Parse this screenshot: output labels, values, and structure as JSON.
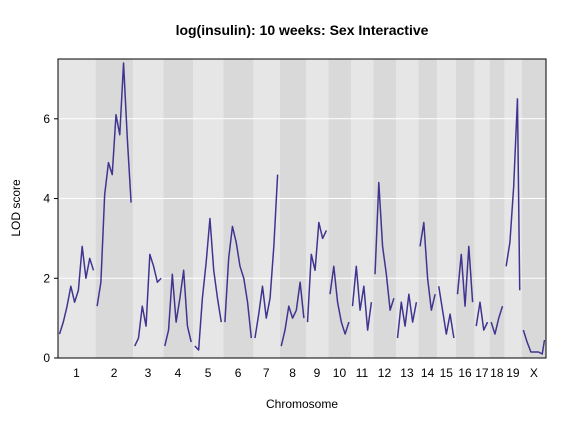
{
  "chart_data": {
    "type": "line",
    "title": "log(insulin): 10 weeks: Sex Interactive",
    "xlabel": "Chromosome",
    "ylabel": "LOD score",
    "ylim": [
      0,
      7.5
    ],
    "y_ticks": [
      0,
      2,
      4,
      6
    ],
    "grid": true,
    "line_color": "#3f3590",
    "band_colors": [
      "#e6e6e6",
      "#d9d9d9"
    ],
    "chromosomes": [
      {
        "label": "1",
        "points": [
          [
            0,
            0.6
          ],
          [
            5,
            0.9
          ],
          [
            10,
            1.3
          ],
          [
            15,
            1.8
          ],
          [
            20,
            1.4
          ],
          [
            25,
            1.7
          ],
          [
            30,
            2.8
          ],
          [
            35,
            2.0
          ],
          [
            40,
            2.5
          ],
          [
            45,
            2.2
          ]
        ]
      },
      {
        "label": "2",
        "points": [
          [
            0,
            1.3
          ],
          [
            5,
            1.9
          ],
          [
            10,
            4.1
          ],
          [
            15,
            4.9
          ],
          [
            20,
            4.6
          ],
          [
            25,
            6.1
          ],
          [
            30,
            5.6
          ],
          [
            35,
            7.4
          ],
          [
            40,
            5.5
          ],
          [
            45,
            3.9
          ]
        ]
      },
      {
        "label": "3",
        "points": [
          [
            0,
            0.3
          ],
          [
            5,
            0.5
          ],
          [
            10,
            1.3
          ],
          [
            15,
            0.8
          ],
          [
            20,
            2.6
          ],
          [
            25,
            2.3
          ],
          [
            30,
            1.9
          ],
          [
            35,
            2.0
          ]
        ]
      },
      {
        "label": "4",
        "points": [
          [
            0,
            0.3
          ],
          [
            5,
            0.7
          ],
          [
            10,
            2.1
          ],
          [
            15,
            0.9
          ],
          [
            20,
            1.5
          ],
          [
            25,
            2.2
          ],
          [
            30,
            0.8
          ],
          [
            35,
            0.4
          ]
        ]
      },
      {
        "label": "5",
        "points": [
          [
            0,
            0.3
          ],
          [
            5,
            0.2
          ],
          [
            10,
            1.5
          ],
          [
            15,
            2.4
          ],
          [
            20,
            3.5
          ],
          [
            25,
            2.2
          ],
          [
            30,
            1.5
          ],
          [
            35,
            0.9
          ]
        ]
      },
      {
        "label": "6",
        "points": [
          [
            0,
            0.9
          ],
          [
            5,
            2.5
          ],
          [
            10,
            3.3
          ],
          [
            15,
            2.9
          ],
          [
            20,
            2.3
          ],
          [
            25,
            2.0
          ],
          [
            30,
            1.4
          ],
          [
            35,
            0.5
          ]
        ]
      },
      {
        "label": "7",
        "points": [
          [
            0,
            0.5
          ],
          [
            5,
            1.1
          ],
          [
            10,
            1.8
          ],
          [
            15,
            1.0
          ],
          [
            20,
            1.5
          ],
          [
            25,
            2.8
          ],
          [
            30,
            4.6
          ]
        ]
      },
      {
        "label": "8",
        "points": [
          [
            0,
            0.3
          ],
          [
            5,
            0.7
          ],
          [
            10,
            1.3
          ],
          [
            15,
            1.0
          ],
          [
            20,
            1.2
          ],
          [
            25,
            1.9
          ],
          [
            30,
            1.0
          ]
        ]
      },
      {
        "label": "9",
        "points": [
          [
            0,
            0.9
          ],
          [
            5,
            2.6
          ],
          [
            10,
            2.2
          ],
          [
            15,
            3.4
          ],
          [
            20,
            3.0
          ],
          [
            25,
            3.2
          ]
        ]
      },
      {
        "label": "10",
        "points": [
          [
            0,
            1.6
          ],
          [
            5,
            2.3
          ],
          [
            10,
            1.4
          ],
          [
            15,
            0.9
          ],
          [
            20,
            0.6
          ],
          [
            25,
            0.9
          ]
        ]
      },
      {
        "label": "11",
        "points": [
          [
            0,
            1.3
          ],
          [
            5,
            2.3
          ],
          [
            10,
            1.2
          ],
          [
            15,
            1.8
          ],
          [
            20,
            0.7
          ],
          [
            25,
            1.4
          ]
        ]
      },
      {
        "label": "12",
        "points": [
          [
            0,
            2.1
          ],
          [
            5,
            4.4
          ],
          [
            10,
            2.8
          ],
          [
            15,
            2.1
          ],
          [
            20,
            1.2
          ],
          [
            25,
            1.5
          ]
        ]
      },
      {
        "label": "13",
        "points": [
          [
            0,
            0.5
          ],
          [
            5,
            1.4
          ],
          [
            10,
            0.8
          ],
          [
            15,
            1.6
          ],
          [
            20,
            0.9
          ],
          [
            25,
            1.4
          ]
        ]
      },
      {
        "label": "14",
        "points": [
          [
            0,
            2.8
          ],
          [
            5,
            3.4
          ],
          [
            10,
            2.0
          ],
          [
            15,
            1.2
          ],
          [
            20,
            1.6
          ]
        ]
      },
      {
        "label": "15",
        "points": [
          [
            0,
            1.8
          ],
          [
            5,
            1.2
          ],
          [
            10,
            0.6
          ],
          [
            15,
            1.1
          ],
          [
            20,
            0.5
          ]
        ]
      },
      {
        "label": "16",
        "points": [
          [
            0,
            1.6
          ],
          [
            5,
            2.6
          ],
          [
            10,
            1.3
          ],
          [
            15,
            2.8
          ],
          [
            20,
            1.4
          ]
        ]
      },
      {
        "label": "17",
        "points": [
          [
            0,
            0.8
          ],
          [
            5,
            1.4
          ],
          [
            10,
            0.7
          ],
          [
            15,
            0.9
          ]
        ]
      },
      {
        "label": "18",
        "points": [
          [
            0,
            0.9
          ],
          [
            5,
            0.6
          ],
          [
            10,
            1.0
          ],
          [
            15,
            1.3
          ]
        ]
      },
      {
        "label": "19",
        "points": [
          [
            0,
            2.3
          ],
          [
            5,
            2.9
          ],
          [
            10,
            4.3
          ],
          [
            15,
            6.5
          ],
          [
            18,
            1.7
          ]
        ]
      },
      {
        "label": "X",
        "points": [
          [
            0,
            0.7
          ],
          [
            5,
            0.4
          ],
          [
            10,
            0.15
          ],
          [
            20,
            0.15
          ],
          [
            25,
            0.1
          ],
          [
            28,
            0.45
          ]
        ]
      }
    ]
  }
}
